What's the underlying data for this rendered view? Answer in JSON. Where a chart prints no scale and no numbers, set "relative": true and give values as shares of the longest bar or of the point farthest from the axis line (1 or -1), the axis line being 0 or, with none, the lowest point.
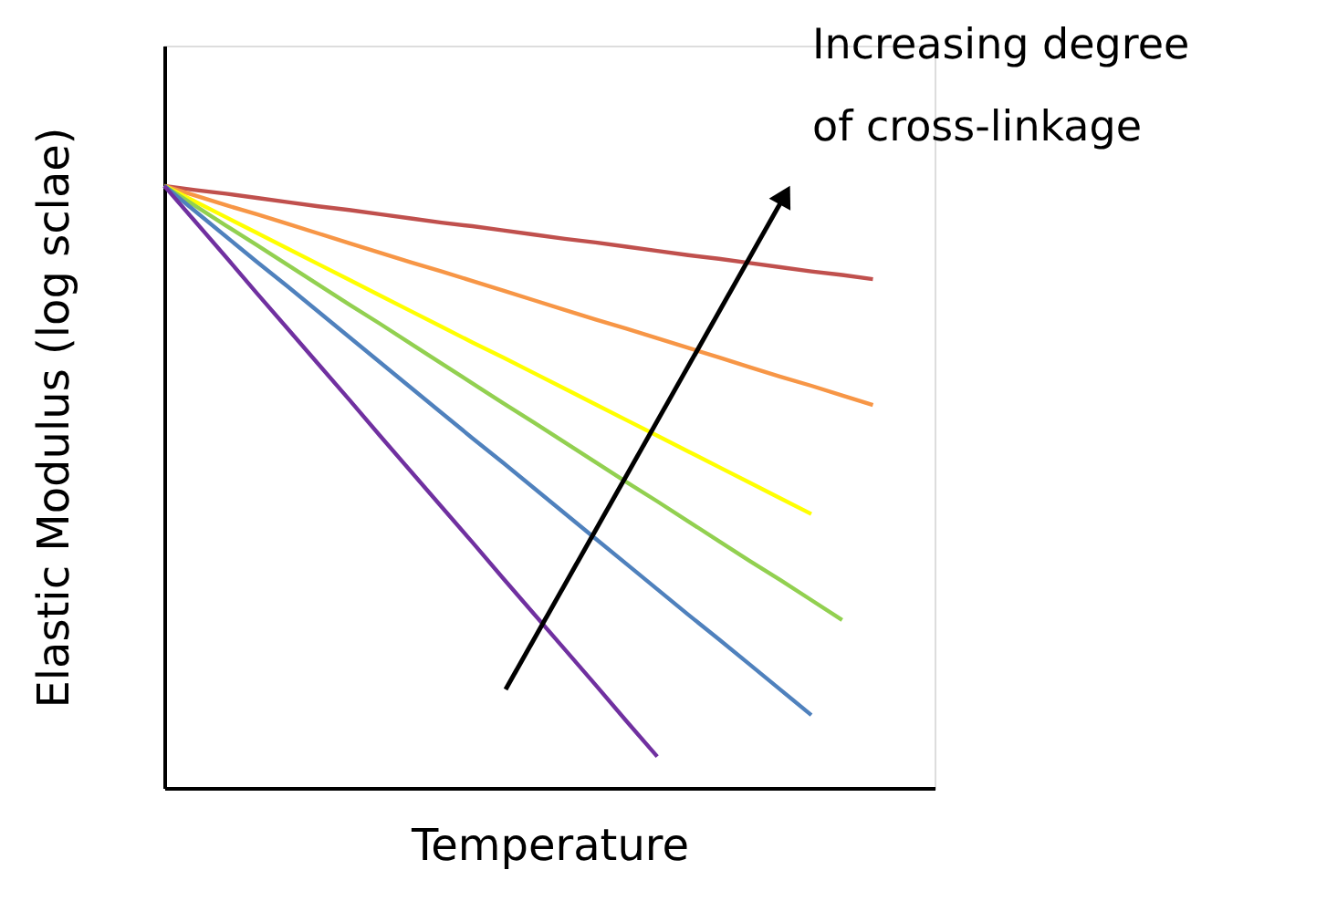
{
  "chart_data": {
    "type": "line",
    "relative": true,
    "xlabel": "Temperature",
    "ylabel": "Elastic Modulus (log sclae)",
    "tick_labels": false,
    "grid": false,
    "legend": false,
    "marker": "none",
    "line_style": "solid",
    "annotations": [
      "Increasing degree",
      "of cross-linkage"
    ],
    "categories": [
      null,
      null,
      null,
      null,
      null,
      null,
      null,
      null,
      null,
      null,
      null,
      null,
      null,
      null,
      null,
      null,
      null,
      null,
      null,
      null,
      null,
      null,
      null,
      null,
      null,
      null
    ],
    "series": [
      {
        "color": "#c0504d",
        "values": [
          1,
          0.993,
          0.987,
          0.98,
          0.973,
          0.966,
          0.96,
          0.953,
          0.946,
          0.939,
          0.933,
          0.926,
          0.919,
          0.912,
          0.906,
          0.899,
          0.892,
          0.885,
          0.879,
          0.872,
          0.865,
          0.858,
          0.852,
          0.845,
          null,
          null
        ]
      },
      {
        "color": "#f79646",
        "values": [
          1,
          0.984,
          0.968,
          0.953,
          0.937,
          0.921,
          0.905,
          0.889,
          0.873,
          0.858,
          0.842,
          0.826,
          0.81,
          0.794,
          0.778,
          0.763,
          0.747,
          0.731,
          0.715,
          0.699,
          0.683,
          0.668,
          0.652,
          0.636,
          null,
          null
        ]
      },
      {
        "color": "#ffff00",
        "values": [
          1,
          0.974,
          0.948,
          0.922,
          0.896,
          0.87,
          0.844,
          0.818,
          0.792,
          0.766,
          0.74,
          0.715,
          0.689,
          0.663,
          0.637,
          0.611,
          0.585,
          0.559,
          0.533,
          0.507,
          0.481,
          0.455,
          null,
          null,
          null,
          null
        ]
      },
      {
        "color": "#92d050",
        "values": [
          1,
          0.967,
          0.934,
          0.902,
          0.869,
          0.836,
          0.803,
          0.771,
          0.738,
          0.705,
          0.672,
          0.639,
          0.607,
          0.574,
          0.541,
          0.508,
          0.476,
          0.443,
          0.41,
          0.377,
          0.345,
          0.312,
          0.279,
          null,
          null,
          null
        ]
      },
      {
        "color": "#4f81bd",
        "values": [
          1,
          0.958,
          0.916,
          0.874,
          0.833,
          0.791,
          0.749,
          0.707,
          0.665,
          0.623,
          0.581,
          0.54,
          0.498,
          0.456,
          0.414,
          0.372,
          0.33,
          0.288,
          0.247,
          0.205,
          0.163,
          0.121,
          null,
          null,
          null,
          null
        ]
      },
      {
        "color": "#7030a0",
        "values": [
          1,
          0.941,
          0.882,
          0.822,
          0.763,
          0.704,
          0.645,
          0.585,
          0.526,
          0.467,
          0.408,
          0.348,
          0.289,
          0.23,
          0.171,
          0.111,
          0.052,
          null,
          null,
          null,
          null,
          null,
          null,
          null,
          null,
          null
        ]
      }
    ]
  }
}
